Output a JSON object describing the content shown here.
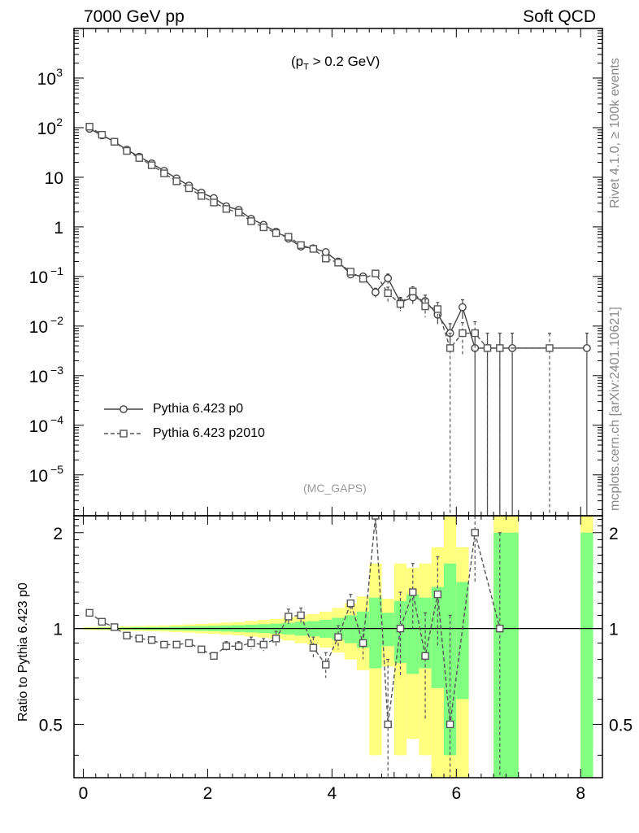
{
  "header": {
    "left_title": "7000 GeV pp",
    "right_title": "Soft QCD"
  },
  "side_labels": {
    "rivet": "Rivet 4.1.0, ≥ 100k events",
    "mcplots": "mcplots.cern.ch [arXiv:2401.10621]"
  },
  "annotations": {
    "cut_prefix": "(p",
    "cut_sub": "T",
    "cut_suffix": " > 0.2 GeV)",
    "analysis": "(MC_GAPS)"
  },
  "ratio_ylabel": "Ratio to Pythia 6.423 p0",
  "legend": [
    {
      "label": "Pythia 6.423 p0"
    },
    {
      "label": "Pythia 6.423 p2010"
    }
  ],
  "colors": {
    "band_yellow": "#ffff80",
    "band_green": "#80ff80",
    "series_p0": "#444444",
    "series_p2010": "#555555"
  },
  "chart_data": [
    {
      "type": "line",
      "title": "",
      "xlabel": "",
      "ylabel": "",
      "yscale": "log",
      "xlim": [
        -0.15,
        8.35
      ],
      "ylim": [
        1.5e-06,
        10000
      ],
      "x_ticks": [
        "0",
        "2",
        "4",
        "6",
        "8"
      ],
      "y_ticks": [
        {
          "base": "10",
          "exp": "3"
        },
        {
          "base": "10",
          "exp": "2"
        },
        {
          "base": "10",
          "exp": ""
        },
        {
          "base": "1",
          "exp": ""
        },
        {
          "base": "10",
          "exp": "−1"
        },
        {
          "base": "10",
          "exp": "−2"
        },
        {
          "base": "10",
          "exp": "−3"
        },
        {
          "base": "10",
          "exp": "−4"
        },
        {
          "base": "10",
          "exp": "−5"
        }
      ],
      "series": [
        {
          "name": "Pythia 6.423 p0",
          "marker": "circle",
          "x": [
            0.1,
            0.3,
            0.5,
            0.7,
            0.9,
            1.1,
            1.3,
            1.5,
            1.7,
            1.9,
            2.1,
            2.3,
            2.5,
            2.7,
            2.9,
            3.1,
            3.3,
            3.5,
            3.7,
            3.9,
            4.1,
            4.3,
            4.5,
            4.7,
            4.9,
            5.1,
            5.3,
            5.5,
            5.7,
            5.9,
            6.1,
            6.3,
            6.5,
            6.7,
            6.9,
            8.1
          ],
          "y": [
            95,
            70,
            52,
            36,
            26,
            19,
            13.5,
            9.5,
            6.8,
            4.9,
            3.8,
            2.6,
            2.2,
            1.45,
            1.1,
            0.8,
            0.58,
            0.4,
            0.37,
            0.31,
            0.2,
            0.11,
            0.1,
            0.048,
            0.092,
            0.03,
            0.038,
            0.032,
            0.017,
            0.0072,
            0.024,
            0.0036,
            0.0036,
            0.0036,
            0.0036,
            0.0036
          ],
          "yerr": [
            0,
            0,
            0,
            0,
            0,
            0,
            0,
            0,
            0,
            0,
            0,
            0,
            0,
            0,
            0,
            0,
            0,
            0,
            0,
            0.02,
            0.02,
            0.015,
            0.015,
            0.01,
            0.02,
            0.008,
            0.01,
            0.01,
            0.006,
            0.004,
            0.01,
            0.0036,
            0.0036,
            0.0036,
            0.0036,
            0.0036
          ]
        },
        {
          "name": "Pythia 6.423 p2010",
          "marker": "square",
          "x": [
            0.1,
            0.3,
            0.5,
            0.7,
            0.9,
            1.1,
            1.3,
            1.5,
            1.7,
            1.9,
            2.1,
            2.3,
            2.5,
            2.7,
            2.9,
            3.1,
            3.3,
            3.5,
            3.7,
            3.9,
            4.1,
            4.3,
            4.5,
            4.7,
            4.9,
            5.1,
            5.3,
            5.5,
            5.7,
            5.9,
            6.1,
            6.3,
            6.5,
            6.7,
            7.5
          ],
          "y": [
            105,
            72,
            52,
            34,
            24.5,
            17.5,
            12,
            8.3,
            6.0,
            4.2,
            3.1,
            2.3,
            1.95,
            1.3,
            0.98,
            0.75,
            0.63,
            0.43,
            0.36,
            0.23,
            0.19,
            0.125,
            0.09,
            0.115,
            0.046,
            0.028,
            0.05,
            0.025,
            0.022,
            0.0036,
            0.0072,
            0.0072,
            0.0036,
            0.0036,
            0.0036
          ],
          "yerr": [
            0,
            0,
            0,
            0,
            0,
            0,
            0,
            0,
            0,
            0,
            0,
            0,
            0,
            0,
            0,
            0,
            0,
            0,
            0,
            0.02,
            0.02,
            0.015,
            0.015,
            0.015,
            0.015,
            0.008,
            0.012,
            0.01,
            0.008,
            0.0036,
            0.0045,
            0.005,
            0.0036,
            0.0036,
            0.0036
          ]
        }
      ]
    },
    {
      "type": "line",
      "title": "",
      "xlabel": "",
      "ylabel": "Ratio to Pythia 6.423 p0",
      "xlim": [
        -0.15,
        8.35
      ],
      "ylim": [
        0.34,
        2.26
      ],
      "x_ticks": [
        "0",
        "2",
        "4",
        "6",
        "8"
      ],
      "y_ticks": [
        "0.5",
        "1",
        "2"
      ],
      "reference_line": 1,
      "bands": [
        {
          "x0": 0.0,
          "x1": 0.2,
          "g": 0.005,
          "y": 0.01
        },
        {
          "x0": 0.2,
          "x1": 0.4,
          "g": 0.006,
          "y": 0.012
        },
        {
          "x0": 0.4,
          "x1": 0.6,
          "g": 0.007,
          "y": 0.014
        },
        {
          "x0": 0.6,
          "x1": 0.8,
          "g": 0.008,
          "y": 0.016
        },
        {
          "x0": 0.8,
          "x1": 1.0,
          "g": 0.009,
          "y": 0.018
        },
        {
          "x0": 1.0,
          "x1": 1.2,
          "g": 0.01,
          "y": 0.02
        },
        {
          "x0": 1.2,
          "x1": 1.4,
          "g": 0.011,
          "y": 0.022
        },
        {
          "x0": 1.4,
          "x1": 1.6,
          "g": 0.013,
          "y": 0.026
        },
        {
          "x0": 1.6,
          "x1": 1.8,
          "g": 0.015,
          "y": 0.03
        },
        {
          "x0": 1.8,
          "x1": 2.0,
          "g": 0.017,
          "y": 0.034
        },
        {
          "x0": 2.0,
          "x1": 2.2,
          "g": 0.019,
          "y": 0.038
        },
        {
          "x0": 2.2,
          "x1": 2.4,
          "g": 0.022,
          "y": 0.044
        },
        {
          "x0": 2.4,
          "x1": 2.6,
          "g": 0.024,
          "y": 0.048
        },
        {
          "x0": 2.6,
          "x1": 2.8,
          "g": 0.028,
          "y": 0.056
        },
        {
          "x0": 2.8,
          "x1": 3.0,
          "g": 0.032,
          "y": 0.064
        },
        {
          "x0": 3.0,
          "x1": 3.2,
          "g": 0.036,
          "y": 0.072
        },
        {
          "x0": 3.2,
          "x1": 3.4,
          "g": 0.042,
          "y": 0.084
        },
        {
          "x0": 3.4,
          "x1": 3.6,
          "g": 0.05,
          "y": 0.1
        },
        {
          "x0": 3.6,
          "x1": 3.8,
          "g": 0.055,
          "y": 0.11
        },
        {
          "x0": 3.8,
          "x1": 4.0,
          "g": 0.065,
          "y": 0.13
        },
        {
          "x0": 4.0,
          "x1": 4.2,
          "g": 0.08,
          "y": 0.16
        },
        {
          "x0": 4.2,
          "x1": 4.4,
          "g": 0.1,
          "y": 0.2
        },
        {
          "x0": 4.4,
          "x1": 4.6,
          "g": 0.13,
          "y": 0.26
        },
        {
          "x0": 4.6,
          "x1": 4.8,
          "g": 0.25,
          "y": 0.6
        },
        {
          "x0": 4.8,
          "x1": 5.0,
          "g": 0.12,
          "y": 0.24
        },
        {
          "x0": 5.0,
          "x1": 5.2,
          "g": 0.22,
          "y": 0.6
        },
        {
          "x0": 5.2,
          "x1": 5.4,
          "g": 0.28,
          "y": 0.55
        },
        {
          "x0": 5.4,
          "x1": 5.6,
          "g": 0.25,
          "y": 0.6
        },
        {
          "x0": 5.6,
          "x1": 5.8,
          "g": 0.35,
          "y": 0.8
        },
        {
          "x0": 5.8,
          "x1": 6.0,
          "g": 0.6,
          "y": 1.3
        },
        {
          "x0": 6.0,
          "x1": 6.2,
          "g": 0.4,
          "y": 0.8
        },
        {
          "x0": 6.6,
          "x1": 7.0,
          "g": 1.0,
          "y": 1.5
        },
        {
          "x0": 8.0,
          "x1": 8.2,
          "g": 1.0,
          "y": 1.5
        }
      ],
      "series": [
        {
          "name": "Pythia 6.423 p2010 / Pythia 6.423 p0",
          "marker": "square",
          "x": [
            0.1,
            0.3,
            0.5,
            0.7,
            0.9,
            1.1,
            1.3,
            1.5,
            1.7,
            1.9,
            2.1,
            2.3,
            2.5,
            2.7,
            2.9,
            3.1,
            3.3,
            3.5,
            3.7,
            3.9,
            4.1,
            4.3,
            4.5,
            4.7,
            4.9,
            5.1,
            5.3,
            5.5,
            5.7,
            5.9,
            6.3,
            6.7
          ],
          "y": [
            1.12,
            1.05,
            1.01,
            0.95,
            0.93,
            0.92,
            0.89,
            0.89,
            0.9,
            0.86,
            0.82,
            0.88,
            0.88,
            0.9,
            0.89,
            0.93,
            1.09,
            1.1,
            0.87,
            0.77,
            0.94,
            1.2,
            0.9,
            2.4,
            0.5,
            1.0,
            1.3,
            0.82,
            1.28,
            0.5,
            2.0,
            1.0
          ],
          "yerr": [
            0,
            0,
            0,
            0,
            0,
            0,
            0,
            0,
            0,
            0.02,
            0.02,
            0.03,
            0.03,
            0.04,
            0.04,
            0.05,
            0.06,
            0.06,
            0.07,
            0.07,
            0.08,
            0.08,
            0.1,
            0.4,
            0.3,
            0.3,
            0.3,
            0.3,
            0.4,
            0.6,
            0.6,
            1.0
          ]
        }
      ]
    }
  ]
}
